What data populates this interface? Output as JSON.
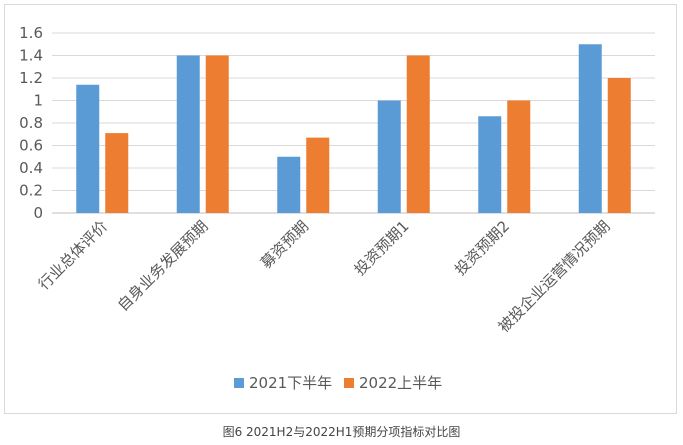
{
  "chart_data": {
    "type": "bar",
    "categories": [
      "行业总体评价",
      "自身业务发展预期",
      "募资预期",
      "投资预期1",
      "投资预期2",
      "被投企业运营情况预期"
    ],
    "series": [
      {
        "name": "2021下半年",
        "values": [
          1.14,
          1.4,
          0.5,
          1.0,
          0.86,
          1.5
        ],
        "color": "#5b9bd5"
      },
      {
        "name": "2022上半年",
        "values": [
          0.71,
          1.4,
          0.67,
          1.4,
          1.0,
          1.2
        ],
        "color": "#ed7d31"
      }
    ],
    "ylim": [
      0,
      1.6
    ],
    "yticks": [
      "0",
      "0.2",
      "0.4",
      "0.6",
      "0.8",
      "1",
      "1.2",
      "1.4",
      "1.6"
    ],
    "grid": true,
    "legend": "bottom"
  },
  "caption": "图6 2021H2与2022H1预期分项指标对比图"
}
